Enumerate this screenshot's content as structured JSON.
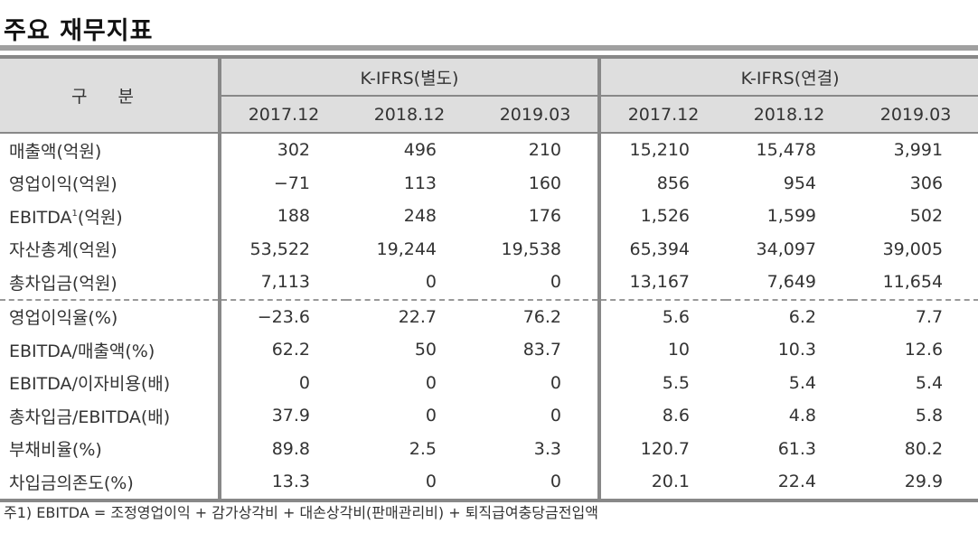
{
  "title": "주요 재무지표",
  "table": {
    "corner_label": "구 분",
    "groups": [
      "K-IFRS(별도)",
      "K-IFRS(연결)"
    ],
    "periods": [
      "2017.12",
      "2018.12",
      "2019.03",
      "2017.12",
      "2018.12",
      "2019.03"
    ],
    "rows": [
      {
        "label": "매출액(억원)",
        "values": [
          "302",
          "496",
          "210",
          "15,210",
          "15,478",
          "3,991"
        ]
      },
      {
        "label": "영업이익(억원)",
        "values": [
          "−71",
          "113",
          "160",
          "856",
          "954",
          "306"
        ]
      },
      {
        "label": "EBITDA",
        "label_sup": "1",
        "label_suffix": "(억원)",
        "values": [
          "188",
          "248",
          "176",
          "1,526",
          "1,599",
          "502"
        ]
      },
      {
        "label": "자산총계(억원)",
        "values": [
          "53,522",
          "19,244",
          "19,538",
          "65,394",
          "34,097",
          "39,005"
        ]
      },
      {
        "label": "총차입금(억원)",
        "values": [
          "7,113",
          "0",
          "0",
          "13,167",
          "7,649",
          "11,654"
        ]
      },
      {
        "label": "영업이익율(%)",
        "values": [
          "−23.6",
          "22.7",
          "76.2",
          "5.6",
          "6.2",
          "7.7"
        ]
      },
      {
        "label": "EBITDA/매출액(%)",
        "values": [
          "62.2",
          "50",
          "83.7",
          "10",
          "10.3",
          "12.6"
        ]
      },
      {
        "label": "EBITDA/이자비용(배)",
        "values": [
          "0",
          "0",
          "0",
          "5.5",
          "5.4",
          "5.4"
        ]
      },
      {
        "label": "총차입금/EBITDA(배)",
        "values": [
          "37.9",
          "0",
          "0",
          "8.6",
          "4.8",
          "5.8"
        ]
      },
      {
        "label": "부채비율(%)",
        "values": [
          "89.8",
          "2.5",
          "3.3",
          "120.7",
          "61.3",
          "80.2"
        ]
      },
      {
        "label": "차입금의존도(%)",
        "values": [
          "13.3",
          "0",
          "0",
          "20.1",
          "22.4",
          "29.9"
        ]
      }
    ]
  },
  "footnote": "주1) EBITDA = 조정영업이익 + 감가상각비 + 대손상각비(판매관리비) + 퇴직급여충당금전입액",
  "colors": {
    "header_bg": "#dedede",
    "border": "#888888",
    "title_bar": "#a0a0a0"
  }
}
